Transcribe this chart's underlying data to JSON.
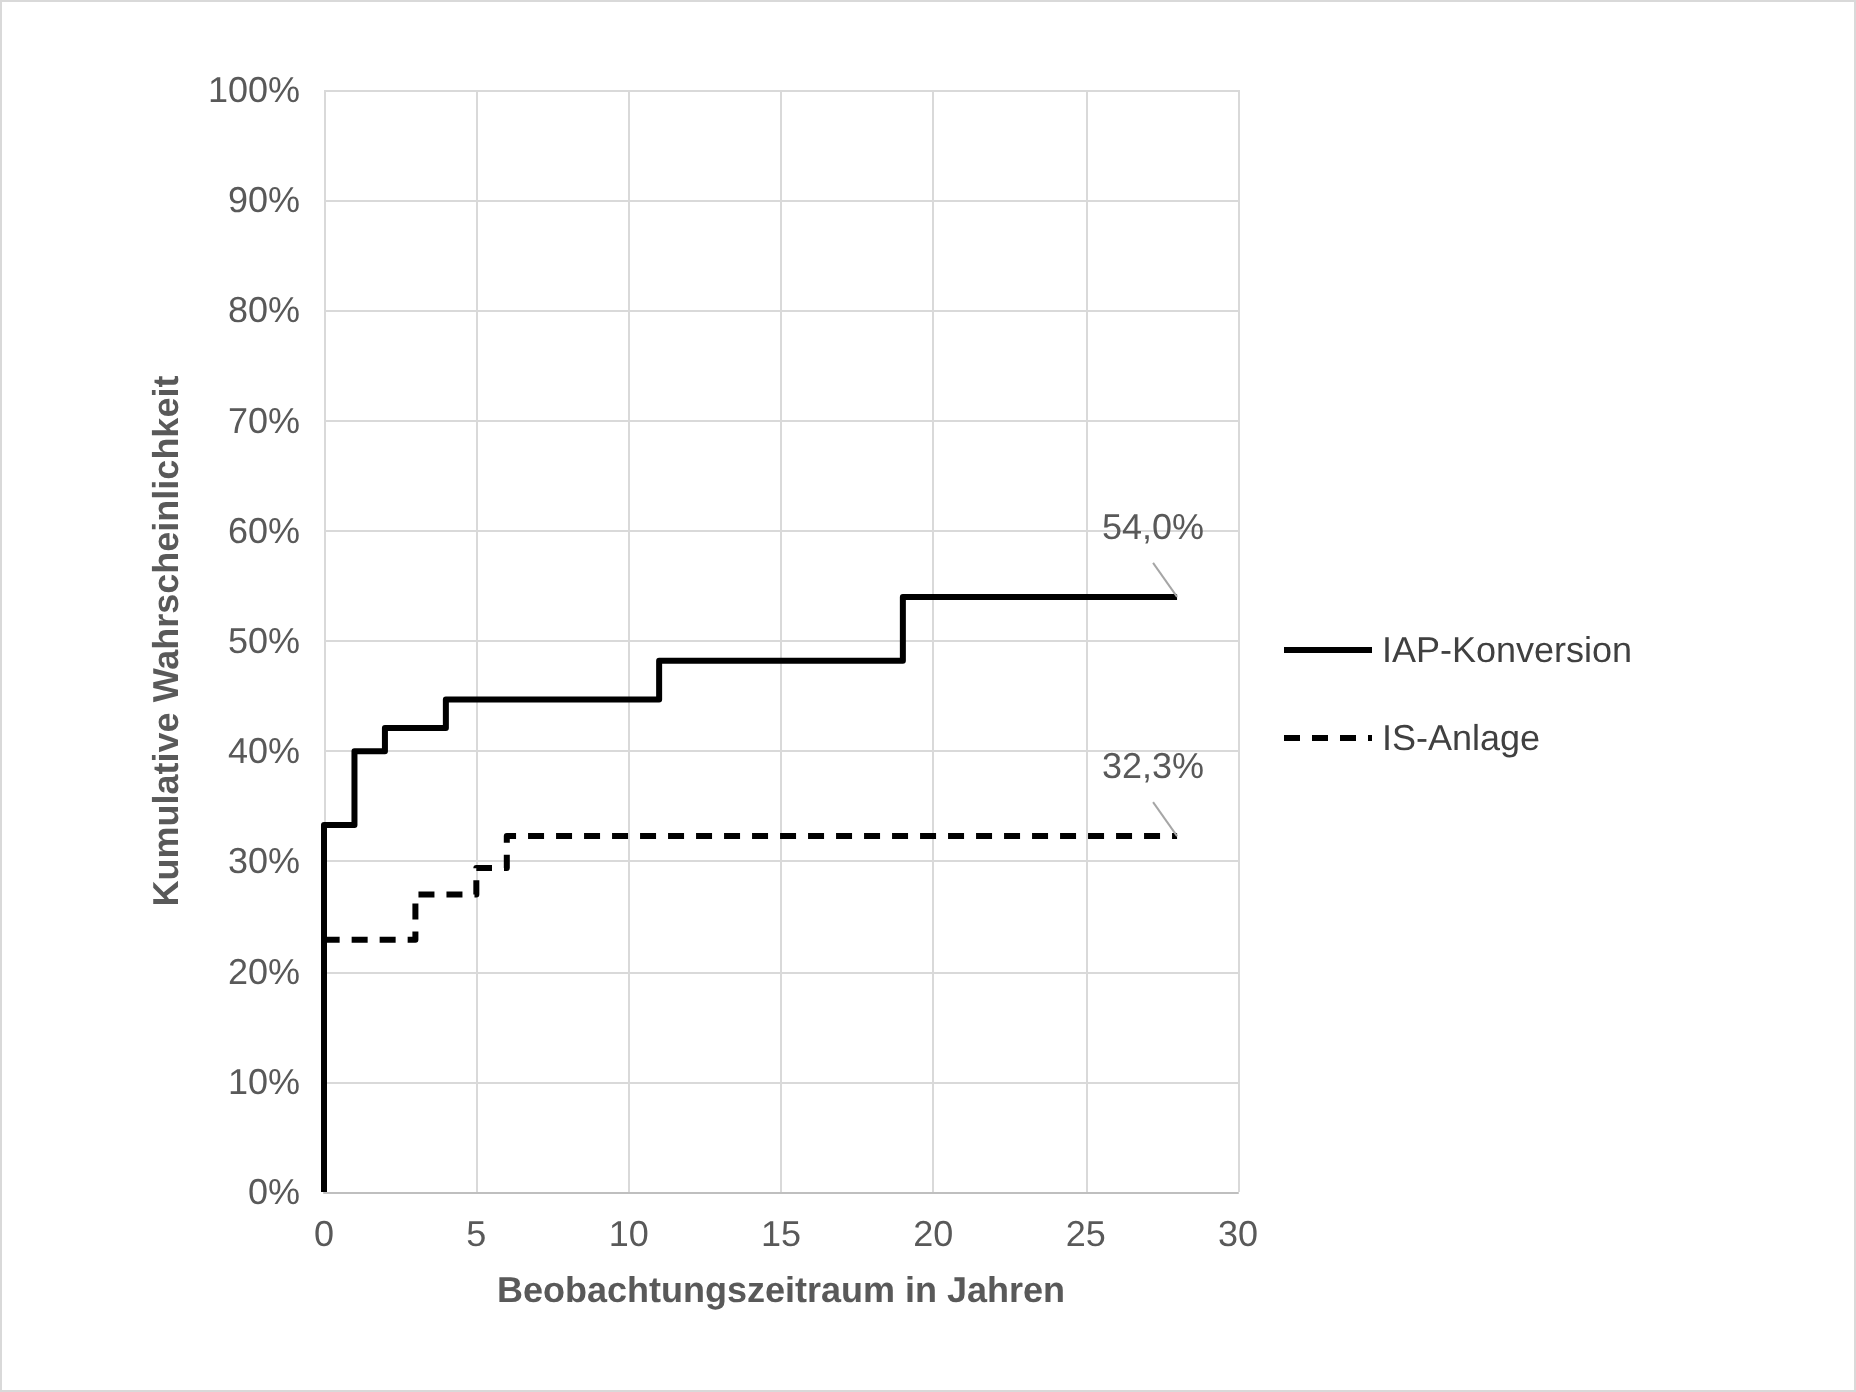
{
  "chart_data": {
    "type": "step",
    "xlabel": "Beobachtungszeitraum in Jahren",
    "ylabel": "Kumulative Wahrscheinlichkeit",
    "xlim": [
      0,
      30
    ],
    "xticks": [
      0,
      5,
      10,
      15,
      20,
      25,
      30
    ],
    "ylim": [
      0,
      100
    ],
    "yticks": [
      {
        "value": 0,
        "label": "0%"
      },
      {
        "value": 10,
        "label": "10%"
      },
      {
        "value": 20,
        "label": "20%"
      },
      {
        "value": 30,
        "label": "30%"
      },
      {
        "value": 40,
        "label": "40%"
      },
      {
        "value": 50,
        "label": "50%"
      },
      {
        "value": 60,
        "label": "60%"
      },
      {
        "value": 70,
        "label": "70%"
      },
      {
        "value": 80,
        "label": "80%"
      },
      {
        "value": 90,
        "label": "90%"
      },
      {
        "value": 100,
        "label": "100%"
      }
    ],
    "grid": true,
    "legend": "right",
    "marker": "none",
    "series": [
      {
        "name": "IAP-Konversion",
        "color": "#000000",
        "line_style": "solid",
        "x": [
          0,
          0,
          1,
          2,
          4,
          11,
          19,
          28
        ],
        "values": [
          0,
          33.3,
          40.0,
          42.1,
          44.7,
          48.2,
          54.0,
          54.0
        ],
        "value_labels": [
          null,
          null,
          null,
          null,
          null,
          null,
          null,
          "54,0%"
        ]
      },
      {
        "name": "IS-Anlage",
        "color": "#000000",
        "line_style": "dashed",
        "x": [
          0,
          0,
          3,
          5,
          6,
          28
        ],
        "values": [
          0,
          22.9,
          27.0,
          29.4,
          32.3,
          32.3
        ],
        "value_labels": [
          null,
          null,
          null,
          null,
          null,
          "32,3%"
        ]
      }
    ]
  }
}
